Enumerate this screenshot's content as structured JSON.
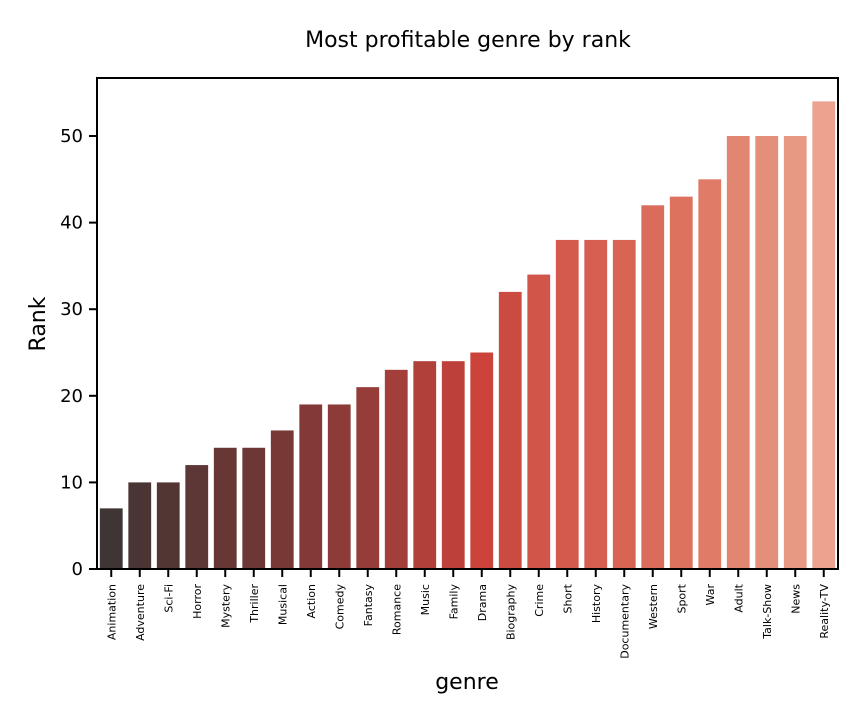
{
  "chart_data": {
    "type": "bar",
    "title": "Most profitable genre by rank",
    "xlabel": "genre",
    "ylabel": "Rank",
    "ylim": [
      0,
      56.7
    ],
    "yticks": [
      0,
      10,
      20,
      30,
      40,
      50
    ],
    "grid": false,
    "categories": [
      "Animation",
      "Adventure",
      "Sci-Fi",
      "Horror",
      "Mystery",
      "Thriller",
      "Musical",
      "Action",
      "Comedy",
      "Fantasy",
      "Romance",
      "Music",
      "Family",
      "Drama",
      "Biography",
      "Crime",
      "Short",
      "History",
      "Documentary",
      "Western",
      "Sport",
      "War",
      "Adult",
      "Talk-Show",
      "News",
      "Reality-TV"
    ],
    "values": [
      7,
      10,
      10,
      12,
      14,
      14,
      16,
      19,
      19,
      21,
      23,
      24,
      24,
      25,
      32,
      34,
      38,
      38,
      38,
      42,
      43,
      45,
      50,
      50,
      50,
      54
    ],
    "colors": [
      "#3f3534",
      "#4a3534",
      "#513634",
      "#5c3735",
      "#663735",
      "#6d3735",
      "#783836",
      "#833937",
      "#8c3b39",
      "#963c39",
      "#a23f3a",
      "#b14039",
      "#be403a",
      "#cb433a",
      "#cc4b40",
      "#d15548",
      "#d45a4e",
      "#d65f52",
      "#d86454",
      "#db6b5a",
      "#dd725f",
      "#df7b67",
      "#e28671",
      "#e48f7a",
      "#e89983",
      "#eca28e"
    ]
  }
}
